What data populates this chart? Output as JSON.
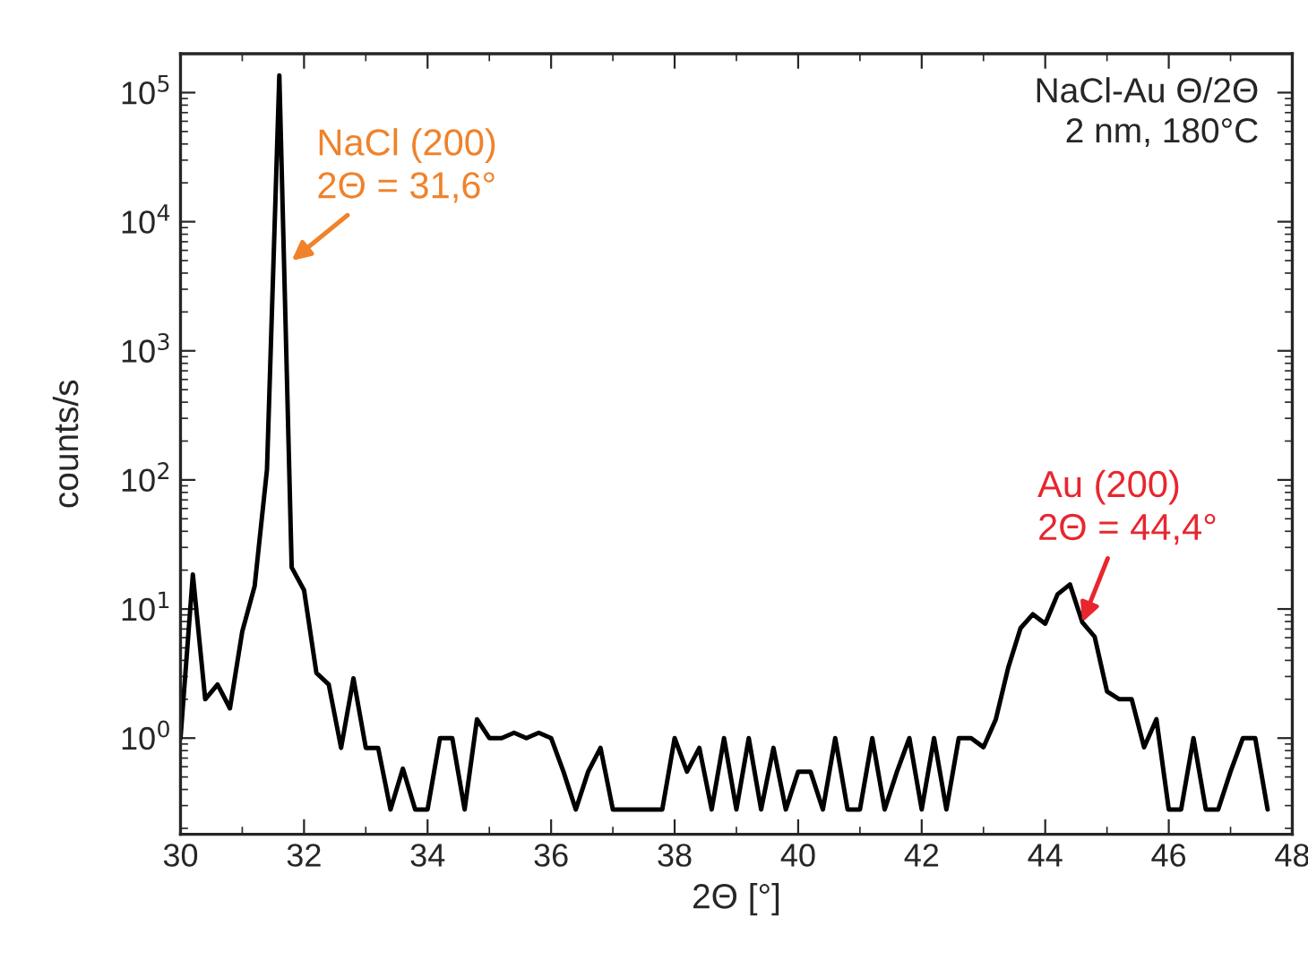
{
  "chart_data": {
    "type": "line",
    "xlabel": "2Θ [°]",
    "ylabel": "counts/s",
    "x": [
      30.0,
      30.2,
      30.4,
      30.6,
      30.8,
      31.0,
      31.2,
      31.4,
      31.6,
      31.8,
      32.0,
      32.2,
      32.4,
      32.6,
      32.8,
      33.0,
      33.2,
      33.4,
      33.6,
      33.8,
      34.0,
      34.2,
      34.4,
      34.6,
      34.8,
      35.0,
      35.2,
      35.4,
      35.6,
      35.8,
      36.0,
      36.2,
      36.4,
      36.6,
      36.8,
      37.0,
      37.2,
      37.4,
      37.6,
      37.8,
      38.0,
      38.2,
      38.4,
      38.6,
      38.8,
      39.0,
      39.2,
      39.4,
      39.6,
      39.8,
      40.0,
      40.2,
      40.4,
      40.6,
      40.8,
      41.0,
      41.2,
      41.4,
      41.6,
      41.8,
      42.0,
      42.2,
      42.4,
      42.6,
      42.8,
      43.0,
      43.2,
      43.4,
      43.6,
      43.8,
      44.0,
      44.2,
      44.4,
      44.6,
      44.8,
      45.0,
      45.2,
      45.4,
      45.6,
      45.8,
      46.0,
      46.2,
      46.4,
      46.6,
      46.8,
      47.0,
      47.2,
      47.4,
      47.6
    ],
    "series": [
      {
        "color": "#000000",
        "values": [
          1.0,
          18.5,
          2.0,
          2.6,
          1.7,
          6.7,
          15,
          120,
          136000,
          21,
          14,
          3.2,
          2.6,
          0.84,
          2.9,
          0.84,
          0.84,
          0.28,
          0.58,
          0.28,
          0.28,
          1.0,
          1.0,
          0.28,
          1.4,
          1.0,
          1.0,
          1.1,
          1.0,
          1.1,
          1.0,
          0.55,
          0.28,
          0.55,
          0.84,
          0.28,
          0.28,
          0.28,
          0.28,
          0.28,
          1.0,
          0.55,
          0.84,
          0.28,
          1.0,
          0.28,
          1.0,
          0.28,
          0.84,
          0.28,
          0.55,
          0.55,
          0.28,
          1.0,
          0.28,
          0.28,
          1.0,
          0.28,
          0.55,
          1.0,
          0.28,
          1.0,
          0.28,
          1.0,
          1.0,
          0.85,
          1.4,
          3.5,
          7.1,
          9.1,
          7.7,
          13,
          15.5,
          7.9,
          6.1,
          2.3,
          2.0,
          2.0,
          0.85,
          1.4,
          0.28,
          0.28,
          1.0,
          0.28,
          0.28,
          0.55,
          1.0,
          1.0,
          0.28
        ]
      }
    ],
    "log": "y",
    "xlim": [
      30,
      48
    ],
    "ylim": [
      0.18,
      200000
    ],
    "xticks": [
      30,
      32,
      34,
      36,
      38,
      40,
      42,
      44,
      46,
      48
    ],
    "yticks": [
      {
        "value": 1,
        "label": "10$^{0}$"
      },
      {
        "value": 10,
        "label": "10$^{1}$"
      },
      {
        "value": 100,
        "label": "10$^{2}$"
      },
      {
        "value": 1000,
        "label": "10$^{3}$"
      },
      {
        "value": 10000,
        "label": "10$^{4}$"
      },
      {
        "value": 100000,
        "label": "10$^{5}$"
      }
    ],
    "grid": false,
    "legend": false,
    "annotations": [
      {
        "text": "NaCl (200)\n2Θ = 31,6°",
        "x": 31.8,
        "y": 5000
      },
      {
        "text": "Au (200)\n2Θ = 44,4°",
        "x": 44.6,
        "y": 7.9
      },
      "NaCl-Au Θ/2Θ\n2 nm, 180°C"
    ]
  }
}
